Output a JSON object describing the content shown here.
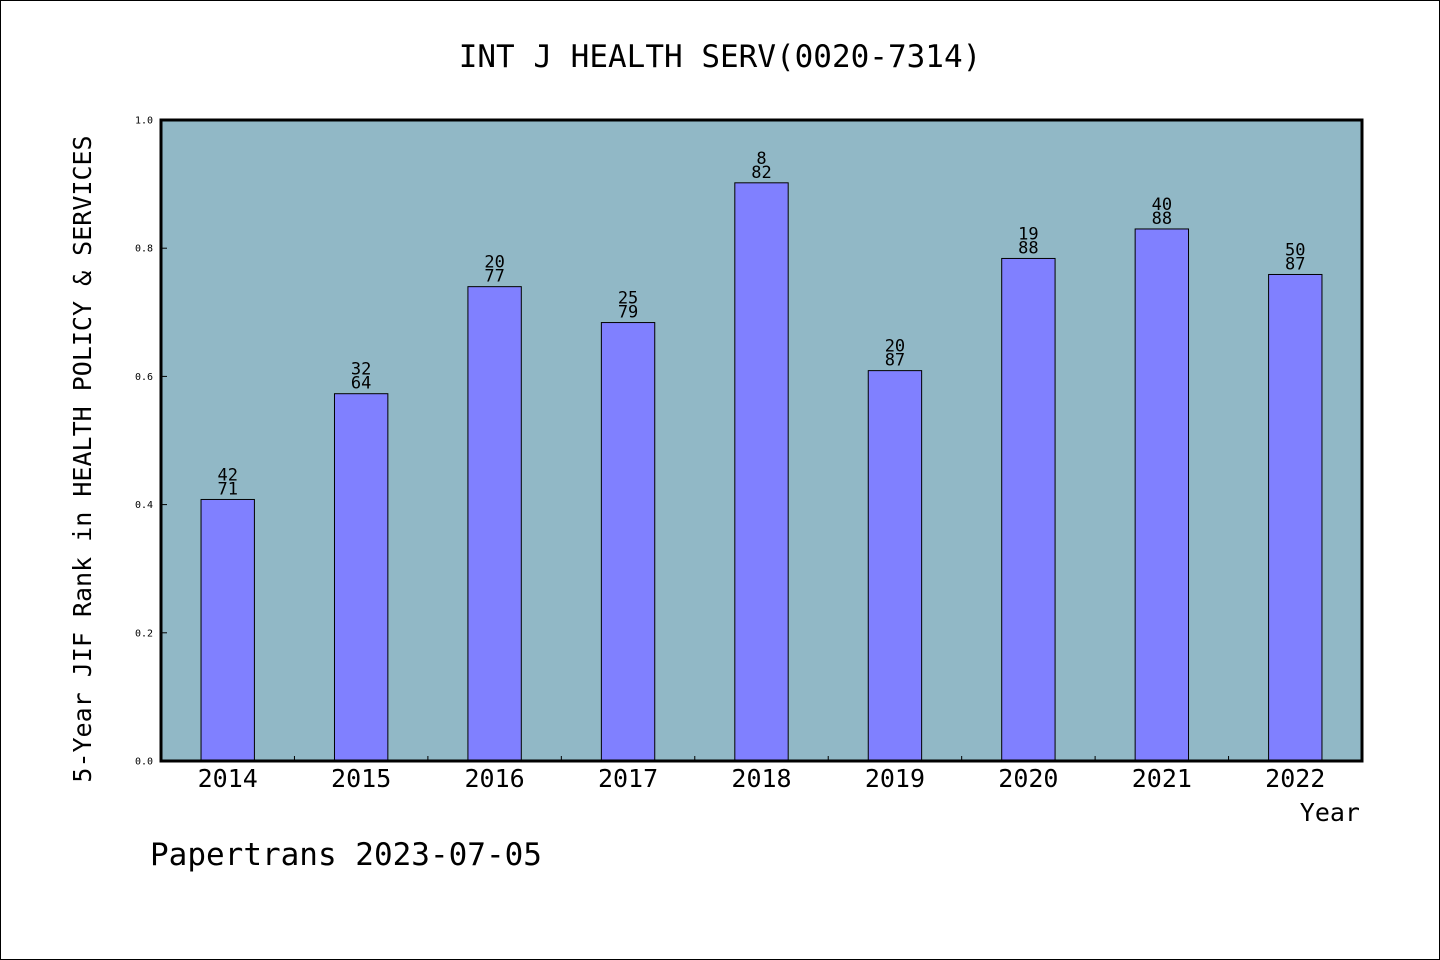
{
  "chart_data": {
    "type": "bar",
    "title": "INT J HEALTH SERV(0020-7314)",
    "xlabel": "Year",
    "ylabel": "5-Year JIF Rank in HEALTH POLICY & SERVICES",
    "categories": [
      "2014",
      "2015",
      "2016",
      "2017",
      "2018",
      "2019",
      "2020",
      "2021",
      "2022"
    ],
    "values": [
      0.408,
      0.573,
      0.74,
      0.684,
      0.902,
      0.609,
      0.784,
      0.83,
      0.759
    ],
    "labels_rank": [
      "42",
      "32",
      "20",
      "25",
      "8",
      "20",
      "19",
      "40",
      "50"
    ],
    "labels_total": [
      "71",
      "64",
      "77",
      "79",
      "82",
      "87",
      "88",
      "88",
      "87"
    ],
    "ylim": [
      0,
      1.0
    ],
    "yticks": [
      0.0,
      0.2,
      0.4,
      0.6,
      0.8,
      1.0
    ],
    "ytick_labels": [
      "0.0",
      "0.2",
      "0.4",
      "0.6",
      "0.8",
      "1.0"
    ],
    "grid": false,
    "colors": {
      "plot_background": "#91b8c6",
      "bar_fill": "#8080ff",
      "bar_stroke": "#000000",
      "text": "#000000"
    }
  },
  "footer": {
    "source_text": "Papertrans 2023-07-05"
  }
}
